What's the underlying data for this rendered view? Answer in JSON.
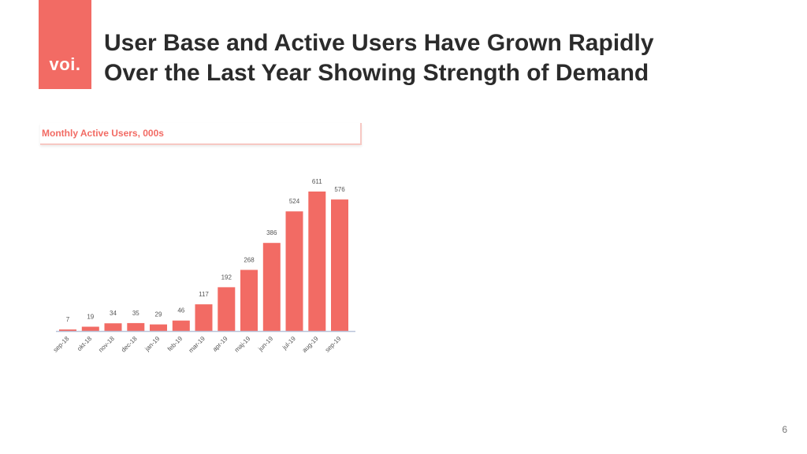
{
  "brand": {
    "logo_text": "voi.",
    "color": "#f26b64"
  },
  "slide": {
    "title_line1": "User Base and Active Users Have Grown Rapidly",
    "title_line2": "Over the Last Year Showing Strength of Demand",
    "page_number": "6"
  },
  "chart_data": {
    "type": "bar",
    "title": "Monthly Active Users, 000s",
    "categories": [
      "sep-18",
      "okt-18",
      "nov-18",
      "dec-18",
      "jan-19",
      "feb-19",
      "mar-19",
      "apr-19",
      "maj-19",
      "jun-19",
      "jul-19",
      "aug-19",
      "sep-19"
    ],
    "values": [
      7,
      19,
      34,
      35,
      29,
      46,
      117,
      192,
      268,
      386,
      524,
      611,
      576
    ],
    "data_labels": [
      "7",
      "19",
      "34",
      "35",
      "29",
      "46",
      "117",
      "192",
      "268",
      "386",
      "524",
      "611",
      "576"
    ],
    "ylim": [
      0,
      611
    ],
    "grid": false,
    "bar_color": "#f26b64",
    "axis_color": "#b9c4da",
    "label_color": "#555555"
  }
}
